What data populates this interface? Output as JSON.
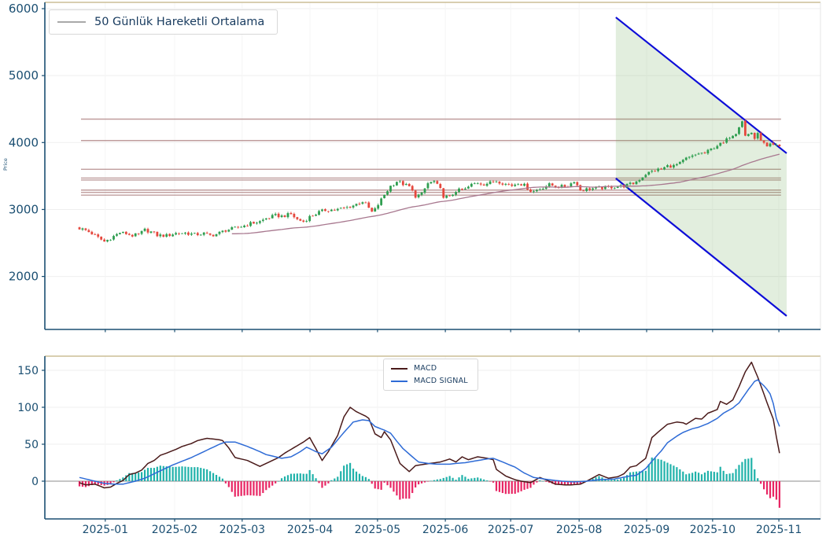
{
  "top_panel": {
    "ylabel": "Price",
    "legend": {
      "label": "50 Günlük Hareketli Ortalama"
    },
    "y_ticks": [
      2000,
      3000,
      4000,
      5000,
      6000
    ]
  },
  "bottom_panel": {
    "legend": {
      "macd": "MACD",
      "signal": "MACD SIGNAL"
    },
    "y_ticks": [
      0,
      50,
      100,
      150
    ]
  },
  "colors": {
    "up": "#2f9e50",
    "down": "#e5473d",
    "ma": "#a8788f",
    "resistance": "#b48d8d",
    "channel_line": "#0d0dd8",
    "channel_fill": "rgba(110,170,90,0.20)",
    "macd": "#4a1a1a",
    "signal": "#2e6bd6",
    "hist_pos": "#20b2aa",
    "hist_neg": "#e82563",
    "axis": "#1b4f72",
    "spine_top": "#ccbd96",
    "spine_right": "#e4e4e4",
    "grid": "#efefef",
    "grid_v": "#f5f5f5",
    "zero_line": "#a3a3a3"
  },
  "chart_data": {
    "type": "candlestick+macd",
    "title": "",
    "price_axis": {
      "ticks": [
        2000,
        3000,
        4000,
        5000,
        6000
      ],
      "range": [
        1205,
        6095
      ]
    },
    "macd_axis": {
      "ticks": [
        0,
        50,
        100,
        150
      ],
      "range": [
        -51,
        169
      ]
    },
    "x_ticks": [
      {
        "label": "2025-01",
        "day": 8.3
      },
      {
        "label": "2025-02",
        "day": 30.6
      },
      {
        "label": "2025-03",
        "day": 52.3
      },
      {
        "label": "2025-04",
        "day": 74.1
      },
      {
        "label": "2025-05",
        "day": 95.8
      },
      {
        "label": "2025-06",
        "day": 117.6
      },
      {
        "label": "2025-07",
        "day": 138.6
      },
      {
        "label": "2025-08",
        "day": 160.6
      },
      {
        "label": "2025-09",
        "day": 182.3
      },
      {
        "label": "2025-10",
        "day": 203.5
      },
      {
        "label": "2025-11",
        "day": 224.8
      }
    ],
    "days_total": 226,
    "close_keypoints": [
      [
        0,
        2720
      ],
      [
        2,
        2690
      ],
      [
        4,
        2640
      ],
      [
        6,
        2580
      ],
      [
        8,
        2520
      ],
      [
        9,
        2545
      ],
      [
        11,
        2600
      ],
      [
        13,
        2655
      ],
      [
        15,
        2640
      ],
      [
        17,
        2610
      ],
      [
        19,
        2625
      ],
      [
        21,
        2695
      ],
      [
        23,
        2665
      ],
      [
        25,
        2615
      ],
      [
        28,
        2610
      ],
      [
        31,
        2645
      ],
      [
        34,
        2650
      ],
      [
        37,
        2625
      ],
      [
        40,
        2640
      ],
      [
        42,
        2615
      ],
      [
        44,
        2630
      ],
      [
        47,
        2690
      ],
      [
        50,
        2720
      ],
      [
        53,
        2760
      ],
      [
        55,
        2790
      ],
      [
        58,
        2820
      ],
      [
        60,
        2865
      ],
      [
        63,
        2910
      ],
      [
        65,
        2900
      ],
      [
        68,
        2930
      ],
      [
        70,
        2850
      ],
      [
        72,
        2820
      ],
      [
        74,
        2890
      ],
      [
        77,
        2960
      ],
      [
        79,
        2990
      ],
      [
        83,
        3000
      ],
      [
        86,
        3030
      ],
      [
        88,
        3060
      ],
      [
        91,
        3120
      ],
      [
        92,
        3080
      ],
      [
        94,
        2960
      ],
      [
        95,
        3000
      ],
      [
        98,
        3220
      ],
      [
        100,
        3350
      ],
      [
        102,
        3420
      ],
      [
        104,
        3380
      ],
      [
        106,
        3340
      ],
      [
        108,
        3200
      ],
      [
        110,
        3230
      ],
      [
        112,
        3390
      ],
      [
        114,
        3420
      ],
      [
        116,
        3300
      ],
      [
        117,
        3200
      ],
      [
        119,
        3180
      ],
      [
        121,
        3280
      ],
      [
        124,
        3300
      ],
      [
        126,
        3370
      ],
      [
        128,
        3400
      ],
      [
        130,
        3380
      ],
      [
        132,
        3400
      ],
      [
        134,
        3430
      ],
      [
        137,
        3380
      ],
      [
        139,
        3360
      ],
      [
        141,
        3400
      ],
      [
        143,
        3360
      ],
      [
        145,
        3280
      ],
      [
        146,
        3270
      ],
      [
        149,
        3330
      ],
      [
        151,
        3370
      ],
      [
        154,
        3340
      ],
      [
        157,
        3350
      ],
      [
        159,
        3430
      ],
      [
        161,
        3290
      ],
      [
        164,
        3310
      ],
      [
        167,
        3320
      ],
      [
        170,
        3330
      ],
      [
        172,
        3340
      ],
      [
        175,
        3350
      ],
      [
        178,
        3390
      ],
      [
        180,
        3450
      ],
      [
        182,
        3530
      ],
      [
        185,
        3590
      ],
      [
        187,
        3600
      ],
      [
        189,
        3650
      ],
      [
        191,
        3650
      ],
      [
        193,
        3690
      ],
      [
        195,
        3760
      ],
      [
        197,
        3790
      ],
      [
        199,
        3840
      ],
      [
        201,
        3840
      ],
      [
        203,
        3900
      ],
      [
        205,
        3960
      ],
      [
        207,
        3990
      ],
      [
        209,
        4090
      ],
      [
        211,
        4150
      ],
      [
        212,
        4250
      ],
      [
        213,
        4330
      ],
      [
        214,
        4100
      ],
      [
        216,
        4150
      ],
      [
        217,
        4060
      ],
      [
        218,
        4120
      ],
      [
        220,
        3980
      ],
      [
        221,
        3930
      ],
      [
        222,
        3960
      ],
      [
        224,
        3950
      ],
      [
        225,
        3940
      ]
    ],
    "ma_window": 50,
    "resistance_levels": [
      4350,
      4030,
      3600,
      3470,
      3440,
      3290,
      3255,
      3215
    ],
    "channel": {
      "day_start": 172.4,
      "day_end": 227.3,
      "top_price_start": 5870,
      "top_price_end": 3840,
      "bottom_price_start": 3465,
      "bottom_price_end": 1410
    },
    "macd_keypoints": [
      [
        0,
        -2
      ],
      [
        2,
        -5
      ],
      [
        5,
        -4
      ],
      [
        8,
        -9
      ],
      [
        10,
        -8
      ],
      [
        12,
        -3
      ],
      [
        14,
        1
      ],
      [
        16,
        9
      ],
      [
        18,
        11
      ],
      [
        20,
        15
      ],
      [
        22,
        24
      ],
      [
        24,
        28
      ],
      [
        26,
        35
      ],
      [
        28,
        38
      ],
      [
        31,
        43
      ],
      [
        33,
        47
      ],
      [
        36,
        51
      ],
      [
        38,
        55
      ],
      [
        41,
        58
      ],
      [
        43,
        57
      ],
      [
        45,
        56
      ],
      [
        46,
        55
      ],
      [
        48,
        45
      ],
      [
        50,
        32
      ],
      [
        52,
        30
      ],
      [
        54,
        28
      ],
      [
        56,
        24
      ],
      [
        58,
        20
      ],
      [
        60,
        24
      ],
      [
        62,
        28
      ],
      [
        64,
        32
      ],
      [
        66,
        38
      ],
      [
        68,
        43
      ],
      [
        70,
        48
      ],
      [
        72,
        53
      ],
      [
        74,
        59
      ],
      [
        76,
        44
      ],
      [
        78,
        28
      ],
      [
        80,
        40
      ],
      [
        83,
        62
      ],
      [
        85,
        87
      ],
      [
        87,
        100
      ],
      [
        89,
        94
      ],
      [
        92,
        88
      ],
      [
        93,
        85
      ],
      [
        95,
        64
      ],
      [
        97,
        59
      ],
      [
        98,
        67
      ],
      [
        100,
        56
      ],
      [
        103,
        24
      ],
      [
        106,
        13
      ],
      [
        108,
        21
      ],
      [
        111,
        23
      ],
      [
        116,
        26
      ],
      [
        119,
        30
      ],
      [
        121,
        26
      ],
      [
        123,
        33
      ],
      [
        125,
        29
      ],
      [
        128,
        33
      ],
      [
        131,
        31
      ],
      [
        133,
        29
      ],
      [
        134,
        16
      ],
      [
        137,
        7
      ],
      [
        140,
        2
      ],
      [
        142,
        0
      ],
      [
        145,
        -2
      ],
      [
        148,
        5
      ],
      [
        151,
        0
      ],
      [
        153,
        -4
      ],
      [
        156,
        -5
      ],
      [
        158,
        -5
      ],
      [
        161,
        -4
      ],
      [
        163,
        0
      ],
      [
        167,
        9
      ],
      [
        170,
        4
      ],
      [
        173,
        6
      ],
      [
        175,
        10
      ],
      [
        177,
        19
      ],
      [
        179,
        21
      ],
      [
        182,
        31
      ],
      [
        184,
        59
      ],
      [
        187,
        70
      ],
      [
        189,
        77
      ],
      [
        192,
        80
      ],
      [
        194,
        79
      ],
      [
        195,
        77
      ],
      [
        198,
        85
      ],
      [
        200,
        84
      ],
      [
        202,
        92
      ],
      [
        205,
        97
      ],
      [
        206,
        108
      ],
      [
        208,
        104
      ],
      [
        210,
        110
      ],
      [
        212,
        128
      ],
      [
        214,
        148
      ],
      [
        216,
        161
      ],
      [
        218,
        141
      ],
      [
        220,
        118
      ],
      [
        221,
        106
      ],
      [
        223,
        84
      ],
      [
        224,
        60
      ],
      [
        225,
        38
      ]
    ],
    "signal_keypoints": [
      [
        0,
        5
      ],
      [
        2,
        3
      ],
      [
        5,
        0
      ],
      [
        8,
        -3
      ],
      [
        11,
        -4
      ],
      [
        14,
        -4
      ],
      [
        16,
        -2
      ],
      [
        18,
        0
      ],
      [
        21,
        4
      ],
      [
        24,
        10
      ],
      [
        27,
        16
      ],
      [
        30,
        22
      ],
      [
        33,
        27
      ],
      [
        36,
        32
      ],
      [
        39,
        38
      ],
      [
        42,
        44
      ],
      [
        45,
        50
      ],
      [
        47,
        53
      ],
      [
        50,
        53
      ],
      [
        54,
        47
      ],
      [
        58,
        40
      ],
      [
        60,
        36
      ],
      [
        63,
        33
      ],
      [
        65,
        31
      ],
      [
        68,
        33
      ],
      [
        71,
        40
      ],
      [
        73,
        46
      ],
      [
        76,
        40
      ],
      [
        78,
        37
      ],
      [
        81,
        46
      ],
      [
        85,
        66
      ],
      [
        88,
        80
      ],
      [
        91,
        83
      ],
      [
        93,
        82
      ],
      [
        95,
        74
      ],
      [
        98,
        69
      ],
      [
        100,
        65
      ],
      [
        102,
        54
      ],
      [
        104,
        44
      ],
      [
        107,
        33
      ],
      [
        109,
        26
      ],
      [
        112,
        24
      ],
      [
        115,
        23
      ],
      [
        119,
        23
      ],
      [
        121,
        24
      ],
      [
        124,
        25
      ],
      [
        128,
        28
      ],
      [
        131,
        30
      ],
      [
        133,
        31
      ],
      [
        136,
        26
      ],
      [
        140,
        19
      ],
      [
        143,
        11
      ],
      [
        146,
        5
      ],
      [
        151,
        2
      ],
      [
        155,
        0
      ],
      [
        159,
        -1
      ],
      [
        163,
        0
      ],
      [
        167,
        2
      ],
      [
        172,
        3
      ],
      [
        177,
        7
      ],
      [
        179,
        8
      ],
      [
        182,
        17
      ],
      [
        184,
        27
      ],
      [
        187,
        41
      ],
      [
        189,
        52
      ],
      [
        192,
        61
      ],
      [
        194,
        66
      ],
      [
        197,
        71
      ],
      [
        199,
        73
      ],
      [
        202,
        78
      ],
      [
        205,
        85
      ],
      [
        207,
        92
      ],
      [
        210,
        99
      ],
      [
        212,
        106
      ],
      [
        215,
        124
      ],
      [
        217,
        135
      ],
      [
        218,
        137
      ],
      [
        219,
        133
      ],
      [
        220,
        129
      ],
      [
        221,
        124
      ],
      [
        222,
        118
      ],
      [
        223,
        105
      ],
      [
        224,
        85
      ],
      [
        225,
        74
      ]
    ],
    "histogram": "macd_minus_signal"
  }
}
